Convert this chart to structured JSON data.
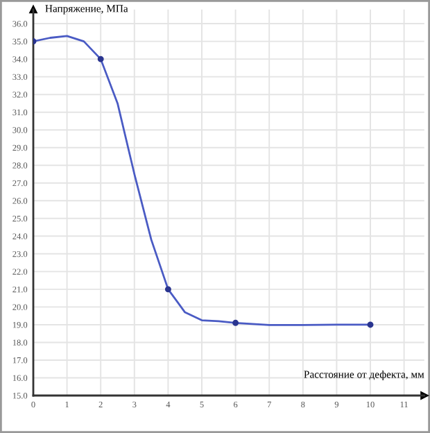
{
  "chart_data": {
    "type": "line",
    "xlabel": "Расстояние от дефекта, мм",
    "ylabel": "Напряжение, МПа",
    "xlim": [
      0,
      11.6
    ],
    "ylim": [
      15,
      36.8
    ],
    "xticks": [
      0,
      1,
      2,
      3,
      4,
      5,
      6,
      7,
      8,
      9,
      10,
      11
    ],
    "yticks": [
      {
        "value": 15,
        "label": "15.0"
      },
      {
        "value": 16,
        "label": "16.0"
      },
      {
        "value": 17,
        "label": "17.0"
      },
      {
        "value": 18,
        "label": "18.0"
      },
      {
        "value": 19,
        "label": "19.0"
      },
      {
        "value": 20,
        "label": "20.0"
      },
      {
        "value": 21,
        "label": "21.0"
      },
      {
        "value": 22,
        "label": "22.0"
      },
      {
        "value": 23,
        "label": "23.0"
      },
      {
        "value": 24,
        "label": "24.0"
      },
      {
        "value": 25,
        "label": "25.0"
      },
      {
        "value": 26,
        "label": "26.0"
      },
      {
        "value": 27,
        "label": "27.0"
      },
      {
        "value": 28,
        "label": "28.0"
      },
      {
        "value": 29,
        "label": "29.0"
      },
      {
        "value": 30,
        "label": "30.0"
      },
      {
        "value": 31,
        "label": "31.0"
      },
      {
        "value": 32,
        "label": "32.0"
      },
      {
        "value": 33,
        "label": "33.0"
      },
      {
        "value": 34,
        "label": "34.0"
      },
      {
        "value": 35,
        "label": "35.0"
      },
      {
        "value": 36,
        "label": "36.0"
      }
    ],
    "grid": true,
    "series": [
      {
        "color": "#4a5bc4",
        "marker": "none",
        "x": [
          0,
          0.5,
          1,
          1.5,
          2,
          2.5,
          3,
          3.5,
          4,
          4.5,
          5,
          5.5,
          6,
          7,
          8,
          9,
          10
        ],
        "values": [
          35.0,
          35.2,
          35.3,
          35.0,
          34.0,
          31.5,
          27.5,
          23.8,
          21.0,
          19.7,
          19.25,
          19.2,
          19.1,
          18.98,
          18.98,
          19.0,
          19.0
        ]
      },
      {
        "type": "scatter",
        "color": "#2a3590",
        "marker": "circle",
        "x": [
          0,
          2,
          4,
          6,
          10
        ],
        "values": [
          35.0,
          34.0,
          21.0,
          19.1,
          19.0
        ]
      }
    ]
  }
}
